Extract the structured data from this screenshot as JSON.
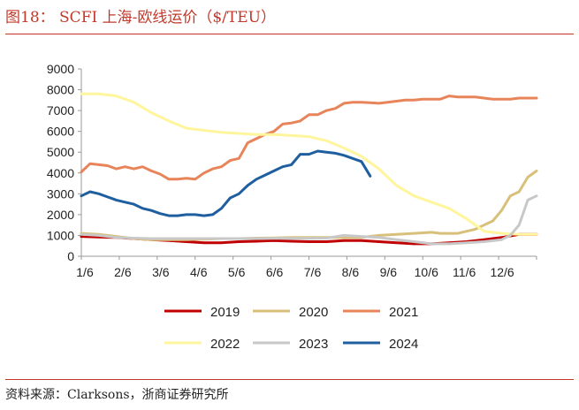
{
  "figure": {
    "title": "图18：  SCFI 上海-欧线运价（$/TEU）",
    "source": "资料来源：Clarksons，浙商证券研究所"
  },
  "chart_data": {
    "type": "line",
    "title": "图18：  SCFI 上海-欧线运价（$/TEU）",
    "xlabel": "",
    "ylabel": "",
    "ylim": [
      0,
      9000
    ],
    "yticks": [
      0,
      1000,
      2000,
      3000,
      4000,
      5000,
      6000,
      7000,
      8000,
      9000
    ],
    "xlim": [
      1,
      53
    ],
    "x_unit": "week of year",
    "xtick_labels": [
      "1/6",
      "2/6",
      "3/6",
      "4/6",
      "5/6",
      "6/6",
      "7/6",
      "8/6",
      "9/6",
      "10/6",
      "11/6",
      "12/6"
    ],
    "grid": false,
    "legend_position": "bottom",
    "series": [
      {
        "name": "2019",
        "color": "#c00000",
        "x": [
          1,
          3,
          5,
          7,
          9,
          11,
          13,
          15,
          17,
          19,
          21,
          23,
          25,
          27,
          29,
          31,
          33,
          35,
          37,
          39,
          41,
          43,
          45,
          47,
          49,
          51,
          53
        ],
        "values": [
          950,
          920,
          900,
          850,
          800,
          750,
          700,
          650,
          650,
          700,
          720,
          750,
          720,
          700,
          700,
          750,
          750,
          700,
          650,
          600,
          600,
          650,
          700,
          800,
          900,
          1050,
          1050
        ]
      },
      {
        "name": "2020",
        "color": "#d8c07a",
        "x": [
          1,
          3,
          5,
          7,
          9,
          11,
          13,
          15,
          17,
          19,
          21,
          23,
          25,
          27,
          29,
          31,
          33,
          35,
          37,
          39,
          41,
          42,
          44,
          46,
          47,
          48,
          49,
          50,
          51,
          52,
          53
        ],
        "values": [
          1100,
          1050,
          950,
          850,
          800,
          800,
          800,
          820,
          850,
          850,
          870,
          880,
          900,
          900,
          900,
          900,
          900,
          1000,
          1050,
          1100,
          1150,
          1100,
          1100,
          1300,
          1500,
          1700,
          2200,
          2900,
          3100,
          3800,
          4100
        ]
      },
      {
        "name": "2021",
        "color": "#e8845a",
        "x": [
          1,
          2,
          3,
          4,
          5,
          6,
          7,
          8,
          9,
          10,
          11,
          12,
          13,
          14,
          15,
          16,
          17,
          18,
          19,
          20,
          21,
          22,
          23,
          24,
          25,
          26,
          27,
          28,
          29,
          30,
          31,
          32,
          33,
          34,
          35,
          36,
          37,
          38,
          39,
          40,
          41,
          42,
          43,
          44,
          45,
          46,
          47,
          48,
          49,
          50,
          51,
          52,
          53
        ],
        "values": [
          4050,
          4450,
          4400,
          4350,
          4200,
          4300,
          4200,
          4300,
          4100,
          3950,
          3700,
          3700,
          3750,
          3700,
          4000,
          4200,
          4300,
          4600,
          4700,
          5450,
          5650,
          5850,
          6000,
          6350,
          6400,
          6500,
          6800,
          6800,
          7000,
          7100,
          7350,
          7400,
          7400,
          7380,
          7350,
          7400,
          7450,
          7500,
          7500,
          7550,
          7550,
          7550,
          7700,
          7650,
          7650,
          7650,
          7600,
          7550,
          7550,
          7550,
          7600,
          7600,
          7600
        ]
      },
      {
        "name": "2022",
        "color": "#fff59d",
        "x": [
          1,
          3,
          5,
          7,
          9,
          11,
          13,
          15,
          17,
          19,
          21,
          23,
          25,
          27,
          29,
          31,
          33,
          35,
          37,
          39,
          41,
          43,
          45,
          47,
          49,
          51,
          53
        ],
        "values": [
          7800,
          7800,
          7700,
          7400,
          6900,
          6500,
          6150,
          6050,
          5950,
          5900,
          5850,
          5850,
          5800,
          5750,
          5550,
          5200,
          4800,
          4200,
          3400,
          2900,
          2600,
          2300,
          1800,
          1200,
          1100,
          1050,
          1050
        ]
      },
      {
        "name": "2023",
        "color": "#c8c8c8",
        "x": [
          1,
          3,
          5,
          7,
          9,
          11,
          13,
          15,
          17,
          19,
          21,
          23,
          25,
          27,
          29,
          31,
          33,
          35,
          37,
          39,
          41,
          43,
          45,
          47,
          49,
          50,
          51,
          52,
          53
        ],
        "values": [
          1050,
          1000,
          900,
          870,
          850,
          850,
          850,
          850,
          850,
          850,
          850,
          860,
          860,
          860,
          870,
          1000,
          950,
          900,
          800,
          700,
          600,
          600,
          650,
          700,
          800,
          1000,
          1500,
          2700,
          2900
        ]
      },
      {
        "name": "2024",
        "color": "#1f5fa0",
        "x": [
          1,
          2,
          3,
          4,
          5,
          6,
          7,
          8,
          9,
          10,
          11,
          12,
          13,
          14,
          15,
          16,
          17,
          18,
          19,
          20,
          21,
          22,
          23,
          24,
          25,
          26,
          27,
          28,
          29,
          30,
          31,
          32,
          33,
          34
        ],
        "values": [
          2900,
          3100,
          3000,
          2850,
          2700,
          2600,
          2500,
          2300,
          2200,
          2050,
          1950,
          1950,
          2000,
          2000,
          1950,
          2000,
          2300,
          2800,
          3000,
          3400,
          3700,
          3900,
          4100,
          4300,
          4400,
          4900,
          4900,
          5050,
          5000,
          4950,
          4850,
          4700,
          4550,
          3850
        ]
      }
    ]
  }
}
